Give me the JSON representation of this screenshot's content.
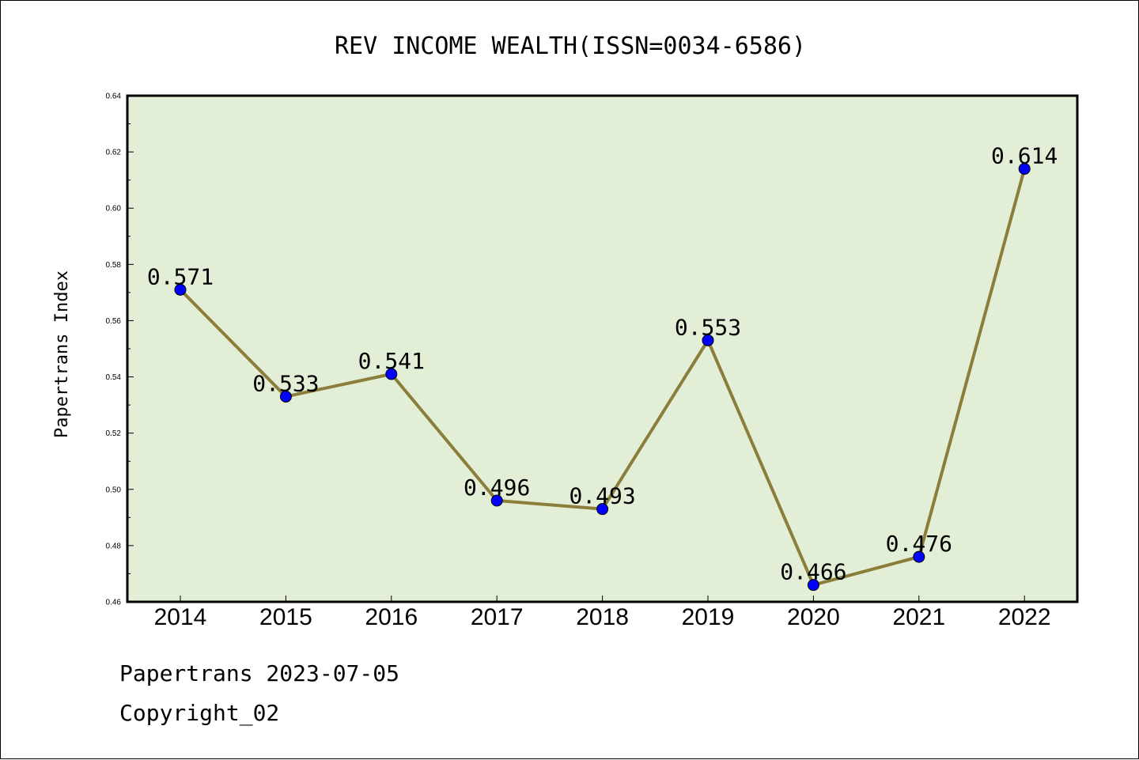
{
  "footer": {
    "line1": "Papertrans 2023-07-05",
    "line2": "Copyright_02"
  },
  "chart_data": {
    "type": "line",
    "title": "REV INCOME WEALTH(ISSN=0034-6586)",
    "xlabel": "",
    "ylabel": "Papertrans Index",
    "categories": [
      "2014",
      "2015",
      "2016",
      "2017",
      "2018",
      "2019",
      "2020",
      "2021",
      "2022"
    ],
    "values": [
      0.571,
      0.533,
      0.541,
      0.496,
      0.493,
      0.553,
      0.466,
      0.476,
      0.614
    ],
    "data_labels": [
      "0.571",
      "0.533",
      "0.541",
      "0.496",
      "0.493",
      "0.553",
      "0.466",
      "0.476",
      "0.614"
    ],
    "ylim": [
      0.46,
      0.64
    ],
    "yticks": [
      "0.46",
      "0.48",
      "0.50",
      "0.52",
      "0.54",
      "0.56",
      "0.58",
      "0.60",
      "0.62",
      "0.64"
    ],
    "grid": false,
    "colors": {
      "plot_background": "#e2efd6",
      "line": "#8b7d3a",
      "marker": "#0000ff"
    }
  }
}
